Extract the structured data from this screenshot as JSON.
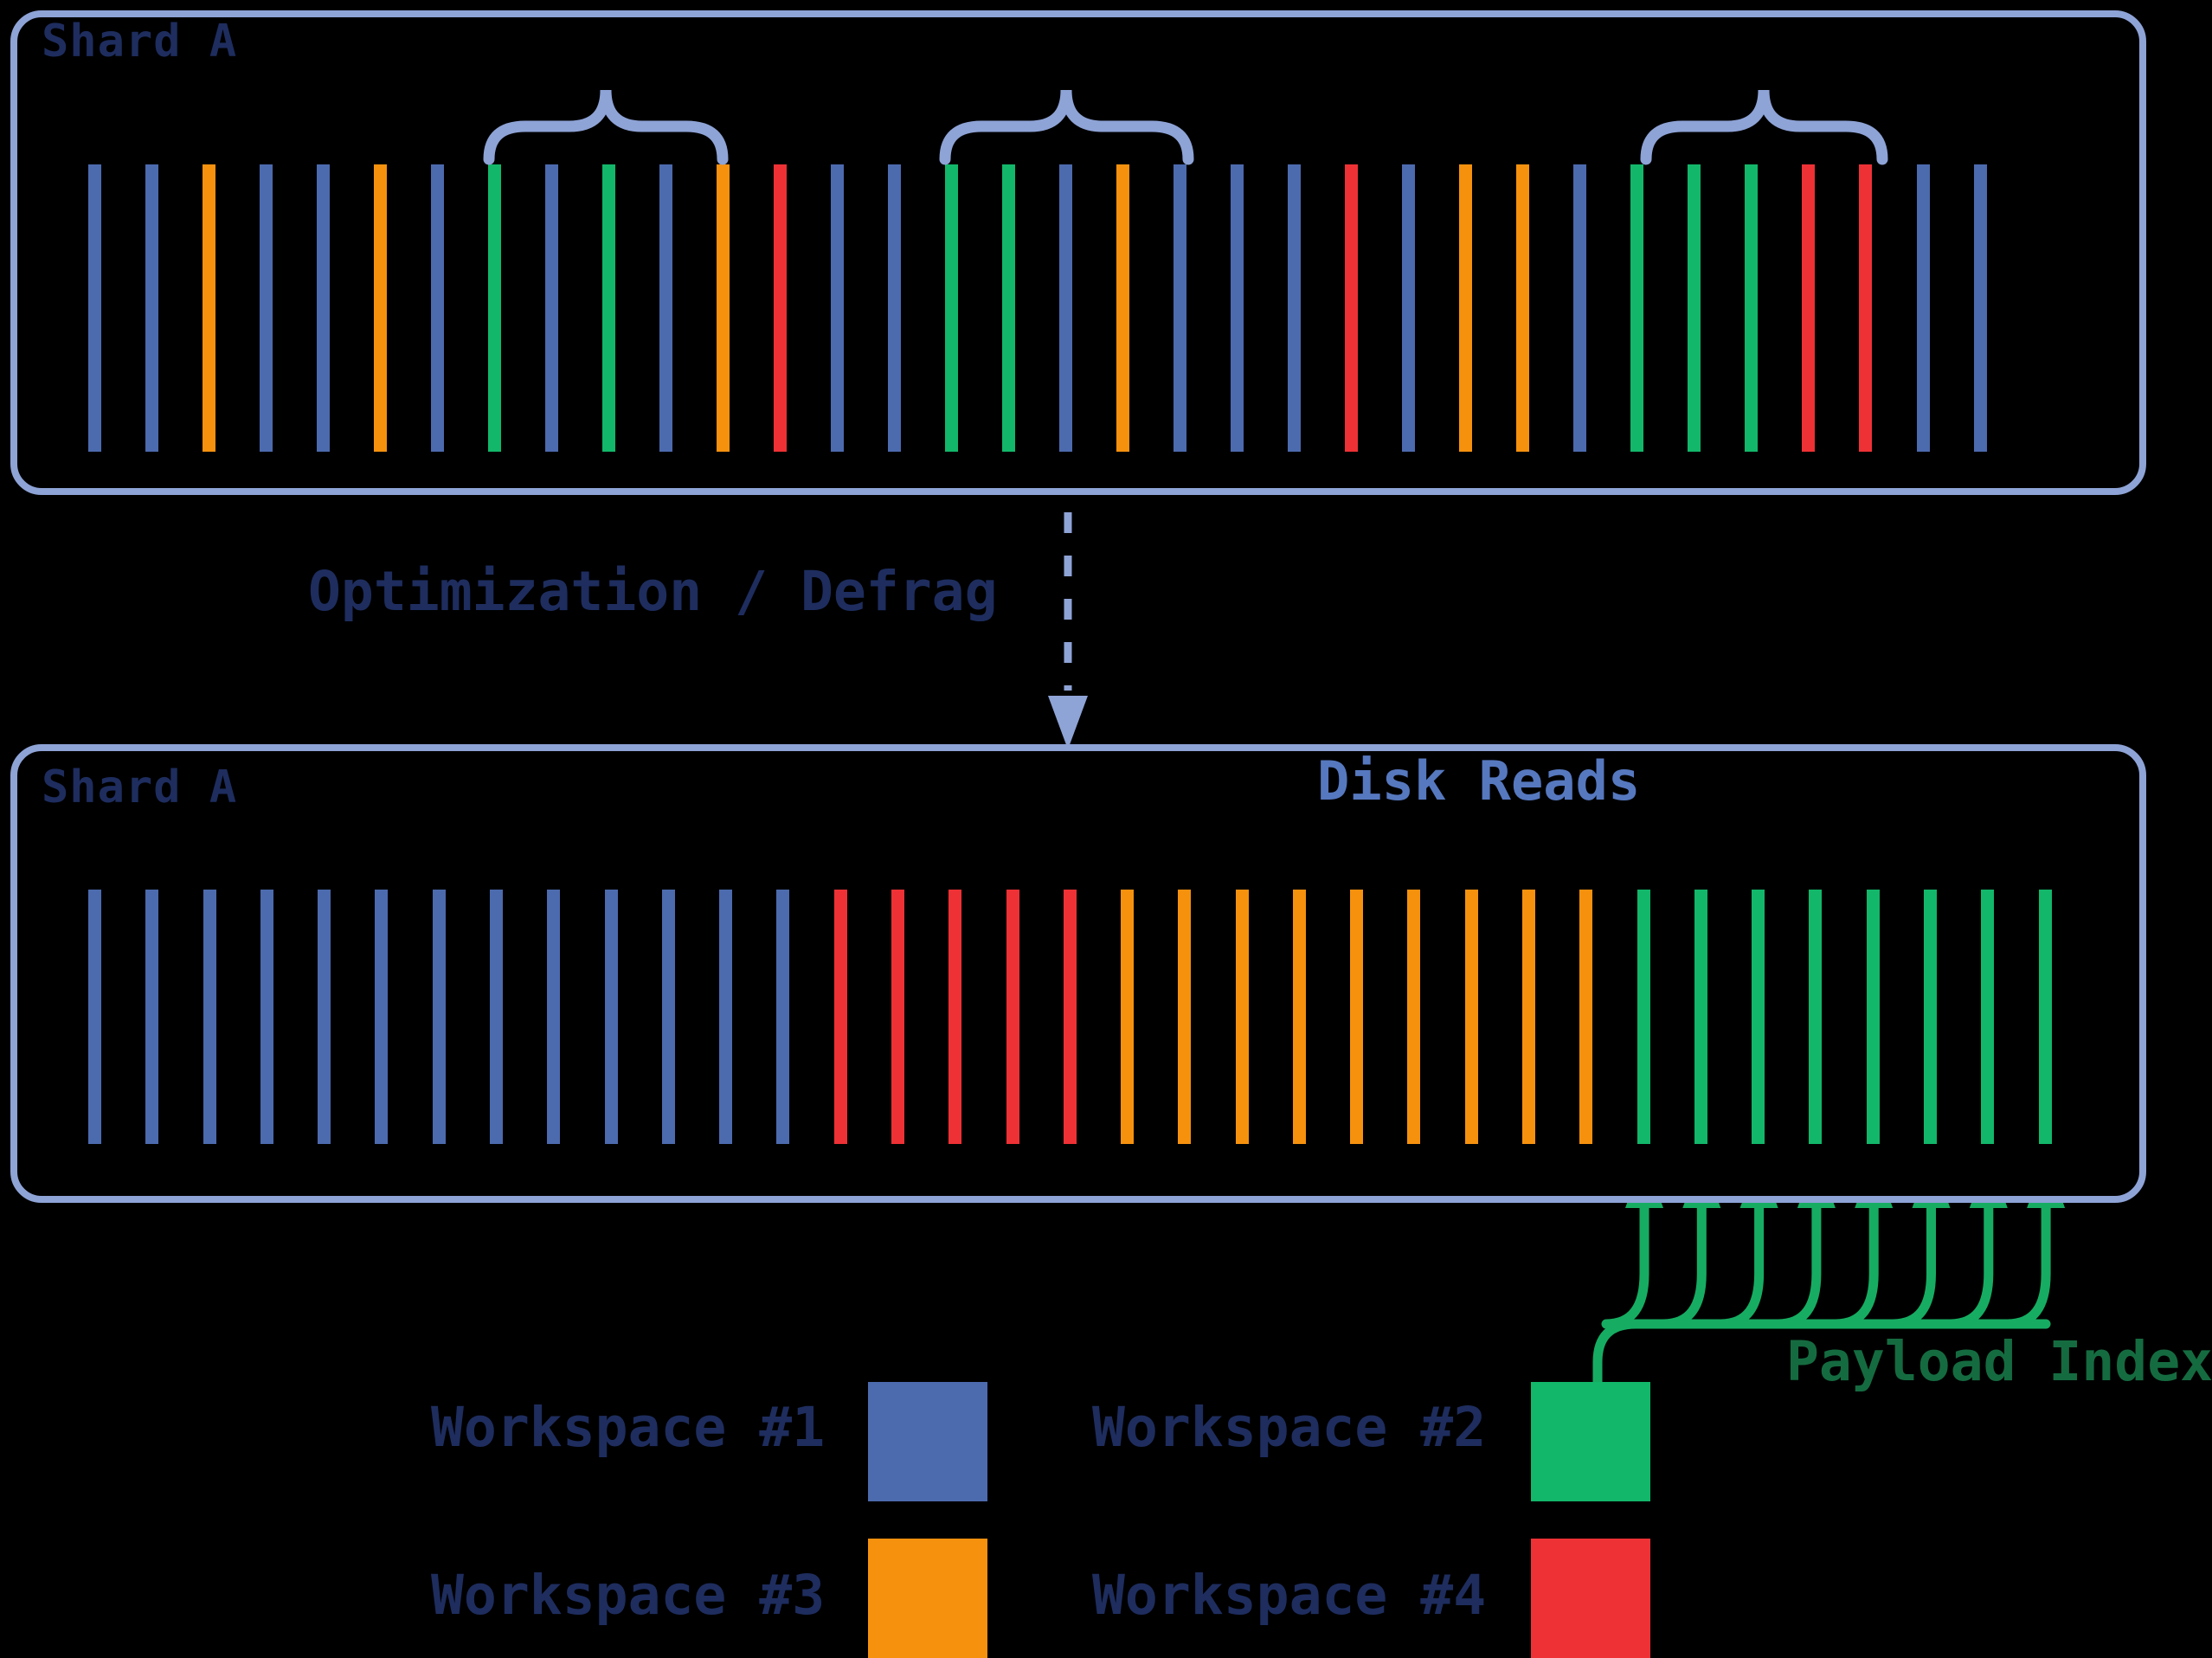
{
  "colors": {
    "workspace1": "#4C6AAE",
    "workspace2": "#12B76A",
    "workspace3": "#F6910E",
    "workspace4": "#EE3135",
    "box_border": "#8EA3D6",
    "title_navy": "#1E2D5E",
    "disk_reads_blue": "#5678BF",
    "payload_green": "#156B40",
    "arrow_green": "#16AD62"
  },
  "top_shard": {
    "title": "Shard A",
    "bars": [
      "workspace1",
      "workspace1",
      "workspace3",
      "workspace1",
      "workspace1",
      "workspace3",
      "workspace1",
      "workspace2",
      "workspace1",
      "workspace2",
      "workspace1",
      "workspace3",
      "workspace4",
      "workspace1",
      "workspace1",
      "workspace2",
      "workspace2",
      "workspace1",
      "workspace3",
      "workspace1",
      "workspace1",
      "workspace1",
      "workspace4",
      "workspace1",
      "workspace3",
      "workspace3",
      "workspace1",
      "workspace2",
      "workspace2",
      "workspace2",
      "workspace4",
      "workspace4",
      "workspace1",
      "workspace1"
    ]
  },
  "transition": {
    "label": "Optimization / Defrag"
  },
  "bottom_shard": {
    "title": "Shard A",
    "disk_reads_label": "Disk Reads",
    "bars": [
      "workspace1",
      "workspace1",
      "workspace1",
      "workspace1",
      "workspace1",
      "workspace1",
      "workspace1",
      "workspace1",
      "workspace1",
      "workspace1",
      "workspace1",
      "workspace1",
      "workspace1",
      "workspace4",
      "workspace4",
      "workspace4",
      "workspace4",
      "workspace4",
      "workspace3",
      "workspace3",
      "workspace3",
      "workspace3",
      "workspace3",
      "workspace3",
      "workspace3",
      "workspace3",
      "workspace3",
      "workspace2",
      "workspace2",
      "workspace2",
      "workspace2",
      "workspace2",
      "workspace2",
      "workspace2",
      "workspace2"
    ]
  },
  "payload_index": {
    "label": "Payload Index",
    "arrow_count": 8
  },
  "legend": {
    "items": [
      {
        "label": "Workspace #1",
        "color": "workspace1"
      },
      {
        "label": "Workspace #2",
        "color": "workspace2"
      },
      {
        "label": "Workspace #3",
        "color": "workspace3"
      },
      {
        "label": "Workspace #4",
        "color": "workspace4"
      }
    ]
  }
}
